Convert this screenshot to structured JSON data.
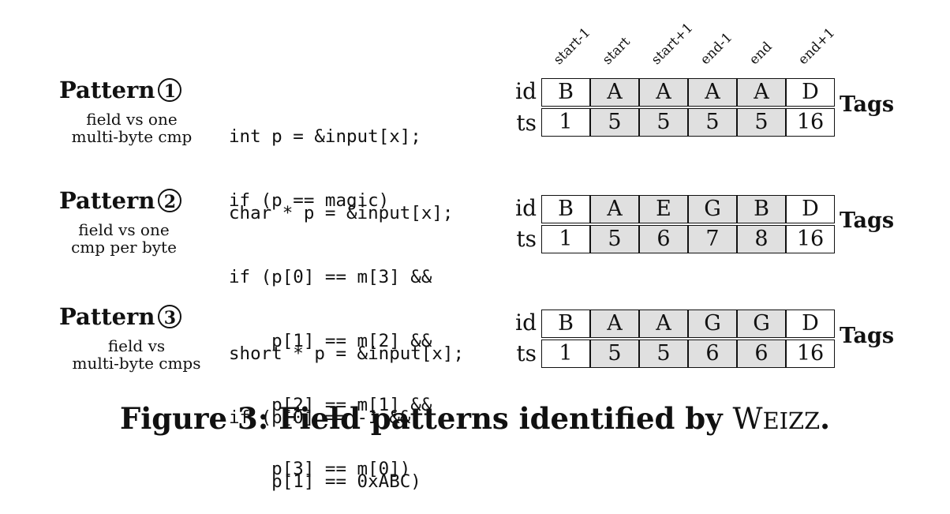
{
  "columns": [
    "start-1",
    "start",
    "start+1",
    "end-1",
    "end",
    "end+1"
  ],
  "row_labels": {
    "id": "id",
    "ts": "ts"
  },
  "tags_label": "Tags",
  "patterns": [
    {
      "title": "Pattern",
      "number": "1",
      "desc": [
        "field vs one",
        "multi-byte cmp"
      ],
      "code": [
        "int p = &input[x];",
        "if (p == magic)"
      ],
      "ids": [
        "B",
        "A",
        "A",
        "A",
        "A",
        "D"
      ],
      "ts": [
        "1",
        "5",
        "5",
        "5",
        "5",
        "16"
      ]
    },
    {
      "title": "Pattern",
      "number": "2",
      "desc": [
        "field vs one",
        "cmp per byte"
      ],
      "code": [
        "char * p = &input[x];",
        "if (p[0] == m[3] &&",
        "    p[1] == m[2] &&",
        "    p[2] == m[1] &&",
        "    p[3] == m[0])"
      ],
      "ids": [
        "B",
        "A",
        "E",
        "G",
        "B",
        "D"
      ],
      "ts": [
        "1",
        "5",
        "6",
        "7",
        "8",
        "16"
      ]
    },
    {
      "title": "Pattern",
      "number": "3",
      "desc": [
        "field vs",
        "multi-byte cmps"
      ],
      "code": [
        "short * p = &input[x];",
        "if (p[0] == -1 &&",
        "    p[1] == 0xABC)"
      ],
      "ids": [
        "B",
        "A",
        "A",
        "G",
        "G",
        "D"
      ],
      "ts": [
        "1",
        "5",
        "5",
        "6",
        "6",
        "16"
      ]
    }
  ],
  "caption": "Figure 3: Field patterns identified by WEIZZ."
}
